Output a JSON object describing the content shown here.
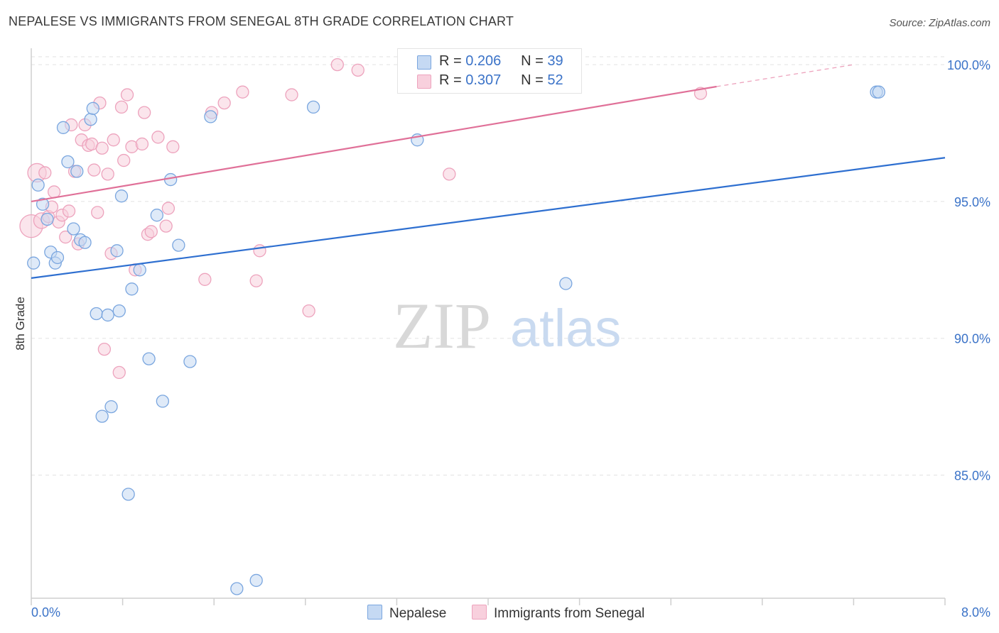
{
  "header": {
    "title": "NEPALESE VS IMMIGRANTS FROM SENEGAL 8TH GRADE CORRELATION CHART",
    "source": "Source: ZipAtlas.com"
  },
  "legend": {
    "series1": {
      "r_label": "R =",
      "r_value": "0.206",
      "n_label": "N =",
      "n_value": "39"
    },
    "series2": {
      "r_label": "R =",
      "r_value": "0.307",
      "n_label": "N =",
      "n_value": "52"
    }
  },
  "bottom_legend": {
    "series1": "Nepalese",
    "series2": "Immigrants from Senegal"
  },
  "watermark": {
    "zip": "ZIP",
    "atlas": "atlas"
  },
  "colors": {
    "blue_stroke": "#7aa6df",
    "blue_fill": "#c5d9f3",
    "blue_line": "#2e6fd0",
    "pink_stroke": "#eda3bd",
    "pink_fill": "#f8d0dd",
    "pink_line": "#e07098",
    "accent_text": "#3b73c8"
  },
  "chart_data": {
    "type": "scatter",
    "title": "NEPALESE VS IMMIGRANTS FROM SENEGAL 8TH GRADE CORRELATION CHART",
    "xlabel": "",
    "ylabel": "8th Grade",
    "xlim": [
      0.0,
      8.0
    ],
    "ylim": [
      80.5,
      100.6
    ],
    "x_tick_labels": [
      "0.0%",
      "8.0%"
    ],
    "y_ticks": [
      85.0,
      90.0,
      95.0,
      100.0
    ],
    "y_tick_labels": [
      "85.0%",
      "90.0%",
      "95.0%",
      "100.0%"
    ],
    "grid": true,
    "series": [
      {
        "name": "Nepalese",
        "r": 0.206,
        "n": 39,
        "trend": {
          "x": [
            0.0,
            8.0
          ],
          "y": [
            92.2,
            96.6
          ]
        },
        "points": [
          [
            0.02,
            92.75
          ],
          [
            0.06,
            95.6
          ],
          [
            0.1,
            94.9
          ],
          [
            0.14,
            94.35
          ],
          [
            0.17,
            93.15
          ],
          [
            0.21,
            92.75
          ],
          [
            0.23,
            92.95
          ],
          [
            0.28,
            97.7
          ],
          [
            0.32,
            96.45
          ],
          [
            0.37,
            94.0
          ],
          [
            0.4,
            96.1
          ],
          [
            0.43,
            93.6
          ],
          [
            0.47,
            93.5
          ],
          [
            0.52,
            98.0
          ],
          [
            0.54,
            98.4
          ],
          [
            0.57,
            90.9
          ],
          [
            0.62,
            87.15
          ],
          [
            0.67,
            90.85
          ],
          [
            0.7,
            87.5
          ],
          [
            0.75,
            93.2
          ],
          [
            0.77,
            91.0
          ],
          [
            0.79,
            95.2
          ],
          [
            0.85,
            84.3
          ],
          [
            0.88,
            91.8
          ],
          [
            0.95,
            92.5
          ],
          [
            1.03,
            89.25
          ],
          [
            1.1,
            94.5
          ],
          [
            1.15,
            87.7
          ],
          [
            1.22,
            95.8
          ],
          [
            1.29,
            93.4
          ],
          [
            1.39,
            89.15
          ],
          [
            1.57,
            98.1
          ],
          [
            1.8,
            80.85
          ],
          [
            1.97,
            81.15
          ],
          [
            2.47,
            98.45
          ],
          [
            3.38,
            97.25
          ],
          [
            4.68,
            92.0
          ],
          [
            7.4,
            99.0
          ],
          [
            7.42,
            99.0
          ]
        ]
      },
      {
        "name": "Immigrants from Senegal",
        "r": 0.307,
        "n": 52,
        "trend": {
          "x": [
            0.0,
            6.0
          ],
          "y": [
            95.0,
            99.2
          ]
        },
        "trend_dashed": {
          "x": [
            6.0,
            7.2
          ],
          "y": [
            99.2,
            100.0
          ]
        },
        "points": [
          [
            0.0,
            94.1
          ],
          [
            0.05,
            96.05
          ],
          [
            0.09,
            94.3
          ],
          [
            0.12,
            96.05
          ],
          [
            0.15,
            94.45
          ],
          [
            0.18,
            94.8
          ],
          [
            0.2,
            95.35
          ],
          [
            0.24,
            94.25
          ],
          [
            0.27,
            94.5
          ],
          [
            0.3,
            93.7
          ],
          [
            0.33,
            94.65
          ],
          [
            0.35,
            97.8
          ],
          [
            0.38,
            96.1
          ],
          [
            0.41,
            93.45
          ],
          [
            0.44,
            97.25
          ],
          [
            0.47,
            97.8
          ],
          [
            0.5,
            97.05
          ],
          [
            0.53,
            97.1
          ],
          [
            0.55,
            96.15
          ],
          [
            0.58,
            94.6
          ],
          [
            0.62,
            96.95
          ],
          [
            0.64,
            89.6
          ],
          [
            0.67,
            96.0
          ],
          [
            0.7,
            93.1
          ],
          [
            0.72,
            97.25
          ],
          [
            0.77,
            88.75
          ],
          [
            0.79,
            98.45
          ],
          [
            0.81,
            96.5
          ],
          [
            0.84,
            98.9
          ],
          [
            0.88,
            97.0
          ],
          [
            0.91,
            92.5
          ],
          [
            0.97,
            97.1
          ],
          [
            0.99,
            98.25
          ],
          [
            1.02,
            93.8
          ],
          [
            1.05,
            93.9
          ],
          [
            1.11,
            97.35
          ],
          [
            1.18,
            94.1
          ],
          [
            1.2,
            94.75
          ],
          [
            1.24,
            97.0
          ],
          [
            1.52,
            92.15
          ],
          [
            1.58,
            98.25
          ],
          [
            1.69,
            98.6
          ],
          [
            1.85,
            99.0
          ],
          [
            1.97,
            92.1
          ],
          [
            2.0,
            93.2
          ],
          [
            2.28,
            98.9
          ],
          [
            2.43,
            91.0
          ],
          [
            2.68,
            100.0
          ],
          [
            2.86,
            99.8
          ],
          [
            3.66,
            96.0
          ],
          [
            5.86,
            98.95
          ],
          [
            0.6,
            98.6
          ]
        ]
      }
    ]
  }
}
